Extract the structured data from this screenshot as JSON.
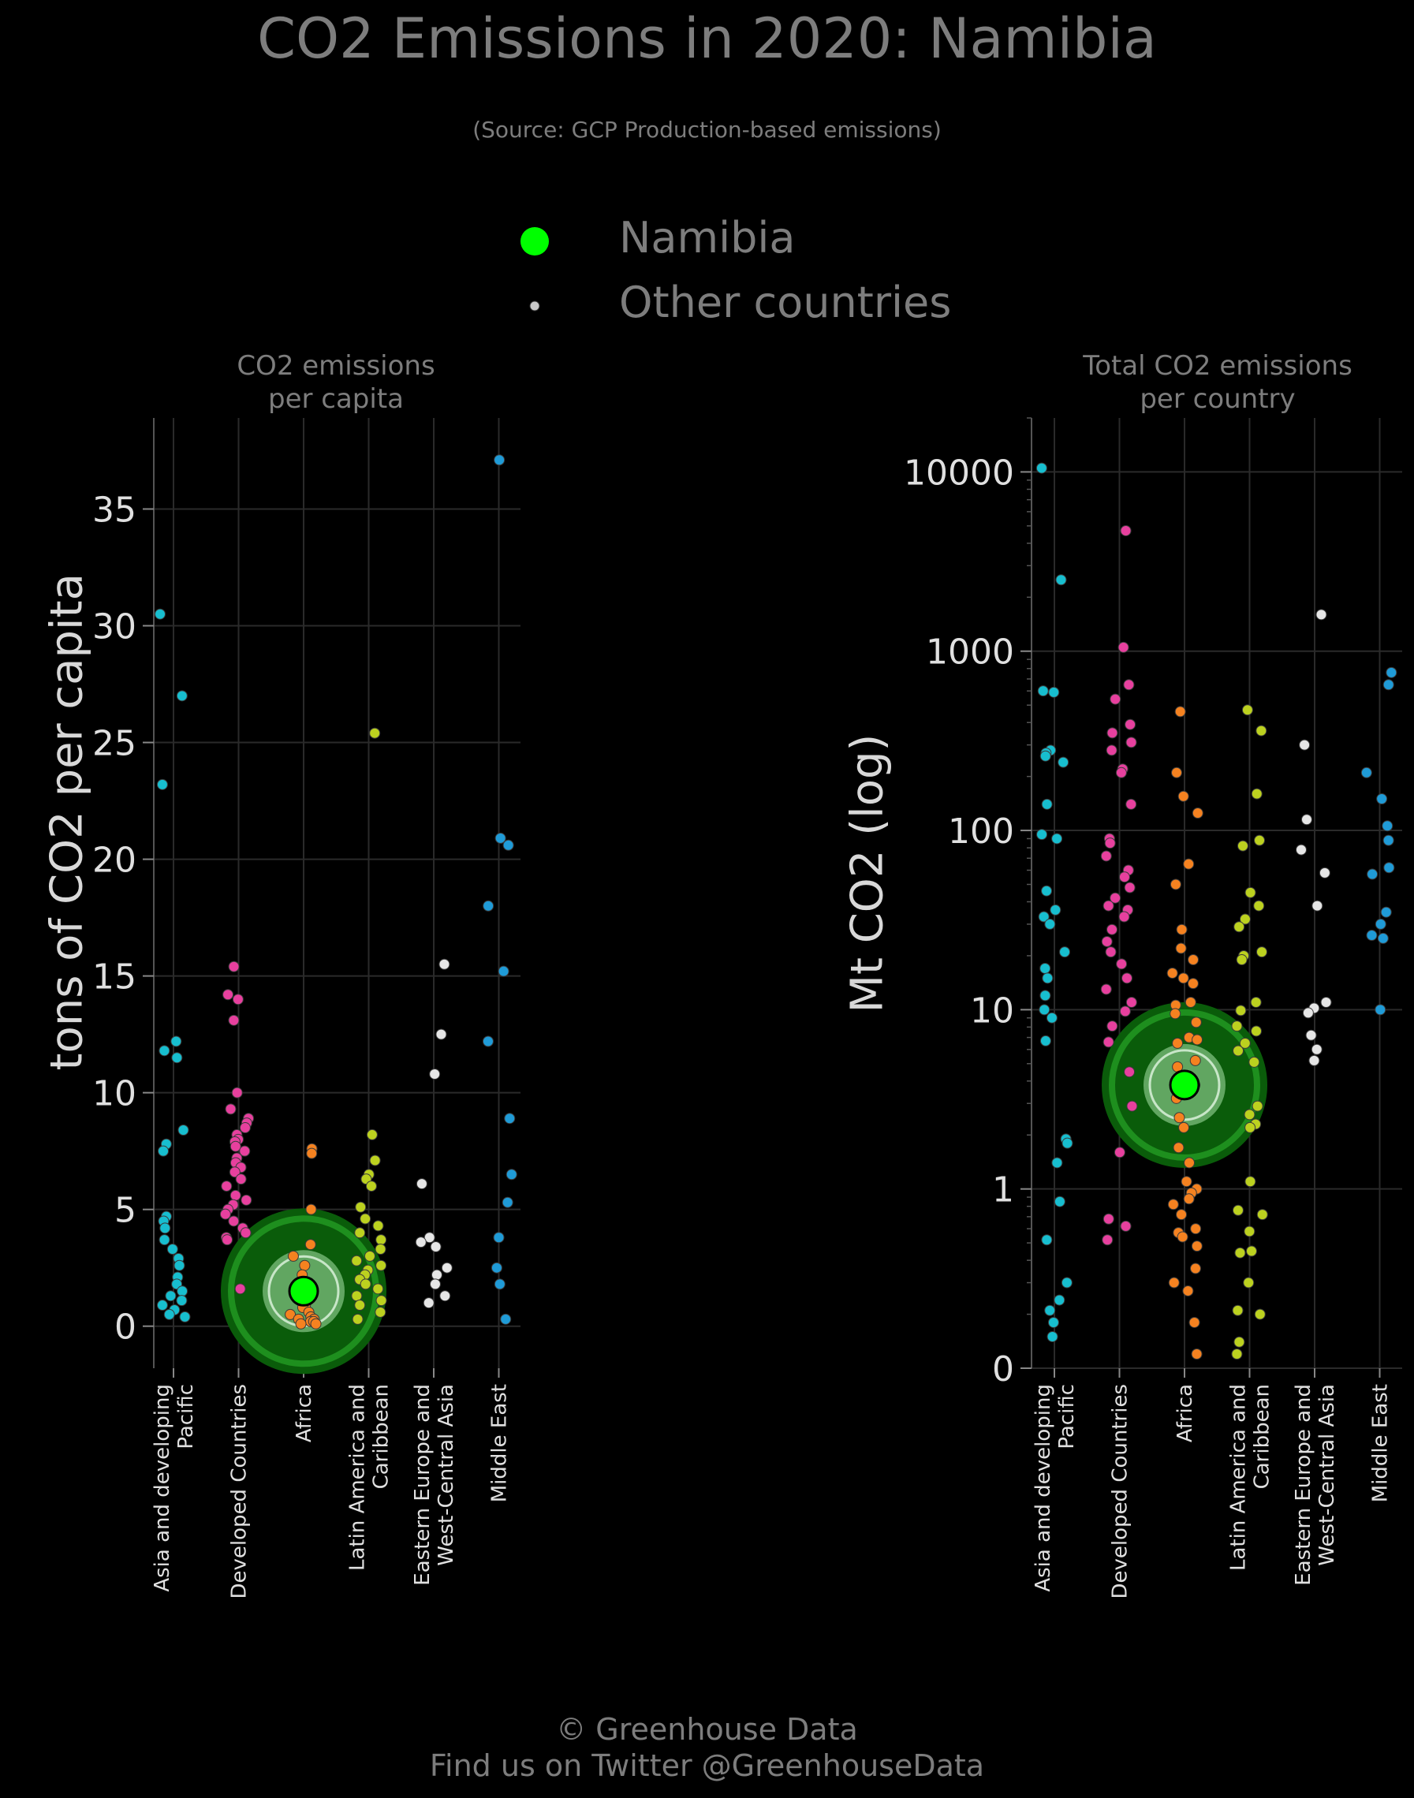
{
  "title": "CO2 Emissions in 2020: Namibia",
  "subtitle": "(Source: GCP Production-based emissions)",
  "legend": {
    "highlight_label": "Namibia",
    "others_label": "Other countries",
    "highlight_color": "#00ff00",
    "others_color": "#c8c8c8"
  },
  "footer": {
    "line1": "© Greenhouse Data",
    "line2": "Find us on Twitter @GreenhouseData"
  },
  "colors": {
    "Asia and developing Pacific": "#17becf",
    "Developed Countries": "#e7409e",
    "Africa": "#f58220",
    "Latin America and Caribbean": "#bcd11f",
    "Eastern Europe and West-Central Asia": "#e6e6e6",
    "Middle East": "#1f9bd7"
  },
  "chart_data": [
    {
      "type": "scatter",
      "title": "CO2 emissions\nper capita",
      "ylabel": "tons of CO2 per capita",
      "yscale": "linear",
      "ylim": [
        -1.8,
        38.9
      ],
      "yticks": [
        0,
        5,
        10,
        15,
        20,
        25,
        30,
        35
      ],
      "grid": true,
      "categories": [
        "Asia and developing Pacific",
        "Developed Countries",
        "Africa",
        "Latin America and Caribbean",
        "Eastern Europe and West-Central Asia",
        "Middle East"
      ],
      "highlight": {
        "name": "Namibia",
        "category": "Africa",
        "value": 1.5
      },
      "series": [
        {
          "category": "Asia and developing Pacific",
          "values": [
            30.5,
            27.0,
            23.2,
            12.2,
            11.8,
            11.5,
            8.4,
            7.8,
            7.5,
            4.7,
            4.5,
            4.2,
            3.7,
            3.3,
            2.9,
            2.6,
            2.1,
            1.8,
            1.5,
            1.3,
            1.1,
            0.9,
            0.7,
            0.5,
            0.4
          ]
        },
        {
          "category": "Developed Countries",
          "values": [
            15.4,
            14.2,
            14.0,
            13.1,
            10.0,
            9.3,
            8.9,
            8.7,
            8.5,
            8.2,
            8.0,
            7.9,
            7.7,
            7.5,
            7.2,
            7.0,
            6.8,
            6.6,
            6.3,
            6.0,
            5.6,
            5.4,
            5.2,
            5.0,
            4.8,
            4.5,
            4.2,
            4.0,
            3.8,
            3.7,
            1.6
          ]
        },
        {
          "category": "Africa",
          "values": [
            7.6,
            7.4,
            5.0,
            3.5,
            3.0,
            2.6,
            2.2,
            1.8,
            1.5,
            1.2,
            0.9,
            0.8,
            0.6,
            0.5,
            0.4,
            0.3,
            0.3,
            0.2,
            0.2,
            0.1,
            0.1
          ]
        },
        {
          "category": "Latin America and Caribbean",
          "values": [
            25.4,
            8.2,
            7.1,
            6.5,
            6.3,
            6.0,
            5.1,
            4.6,
            4.3,
            4.0,
            3.7,
            3.3,
            3.0,
            2.8,
            2.6,
            2.4,
            2.2,
            2.0,
            1.8,
            1.6,
            1.3,
            1.1,
            0.9,
            0.6,
            0.3
          ]
        },
        {
          "category": "Eastern Europe and West-Central Asia",
          "values": [
            15.5,
            12.5,
            10.8,
            6.1,
            3.8,
            3.6,
            3.4,
            2.5,
            2.2,
            1.8,
            1.3,
            1.0
          ]
        },
        {
          "category": "Middle East",
          "values": [
            37.1,
            20.9,
            20.6,
            18.0,
            15.2,
            12.2,
            8.9,
            6.5,
            5.3,
            3.8,
            2.5,
            1.8,
            0.3
          ]
        }
      ]
    },
    {
      "type": "scatter",
      "title": "Total CO2 emissions\nper country",
      "ylabel": "Mt CO2 (log)",
      "yscale": "log",
      "ylim": [
        0.1,
        20000
      ],
      "yticks": [
        0.1,
        1,
        10,
        100,
        1000,
        10000
      ],
      "yticklabels": [
        "0",
        "1",
        "10",
        "100",
        "1000",
        "10000"
      ],
      "grid": true,
      "categories": [
        "Asia and developing Pacific",
        "Developed Countries",
        "Africa",
        "Latin America and Caribbean",
        "Eastern Europe and West-Central Asia",
        "Middle East"
      ],
      "highlight": {
        "name": "Namibia",
        "category": "Africa",
        "value": 3.8
      },
      "series": [
        {
          "category": "Asia and developing Pacific",
          "values": [
            10500,
            2500,
            600,
            590,
            280,
            270,
            260,
            240,
            140,
            95,
            90,
            46,
            36,
            33,
            30,
            21,
            17,
            15,
            12,
            10,
            9,
            6.7,
            1.9,
            1.8,
            1.4,
            0.85,
            0.52,
            0.3,
            0.24,
            0.21,
            0.18,
            0.15
          ]
        },
        {
          "category": "Developed Countries",
          "values": [
            4700,
            1050,
            650,
            540,
            390,
            350,
            310,
            280,
            220,
            210,
            140,
            90,
            85,
            72,
            60,
            55,
            48,
            42,
            38,
            36,
            33,
            28,
            24,
            21,
            18,
            15,
            13,
            11,
            9.8,
            8.1,
            6.6,
            4.5,
            2.9,
            1.6,
            0.68,
            0.62,
            0.52
          ]
        },
        {
          "category": "Africa",
          "values": [
            460,
            210,
            155,
            125,
            65,
            50,
            28,
            22,
            19,
            16,
            15,
            14,
            11,
            10.6,
            9.5,
            8.5,
            7.0,
            6.8,
            6.5,
            5.2,
            4.8,
            3.8,
            3.5,
            3.2,
            2.5,
            2.2,
            1.7,
            1.4,
            1.1,
            1.0,
            0.95,
            0.88,
            0.82,
            0.72,
            0.6,
            0.57,
            0.54,
            0.48,
            0.36,
            0.3,
            0.27,
            0.18,
            0.12
          ]
        },
        {
          "category": "Latin America and Caribbean",
          "values": [
            470,
            360,
            160,
            88,
            82,
            45,
            38,
            32,
            29,
            21,
            20,
            19,
            11,
            9.9,
            8.1,
            7.6,
            6.5,
            5.9,
            5.1,
            2.9,
            2.6,
            2.3,
            2.2,
            1.1,
            0.76,
            0.72,
            0.58,
            0.45,
            0.44,
            0.3,
            0.21,
            0.2,
            0.14,
            0.12
          ]
        },
        {
          "category": "Eastern Europe and West-Central Asia",
          "values": [
            1600,
            300,
            115,
            78,
            58,
            38,
            11,
            10.2,
            9.6,
            7.2,
            6.0,
            5.2
          ]
        },
        {
          "category": "Middle East",
          "values": [
            760,
            650,
            210,
            150,
            106,
            88,
            62,
            57,
            35,
            30,
            26,
            25,
            10
          ]
        }
      ]
    }
  ]
}
